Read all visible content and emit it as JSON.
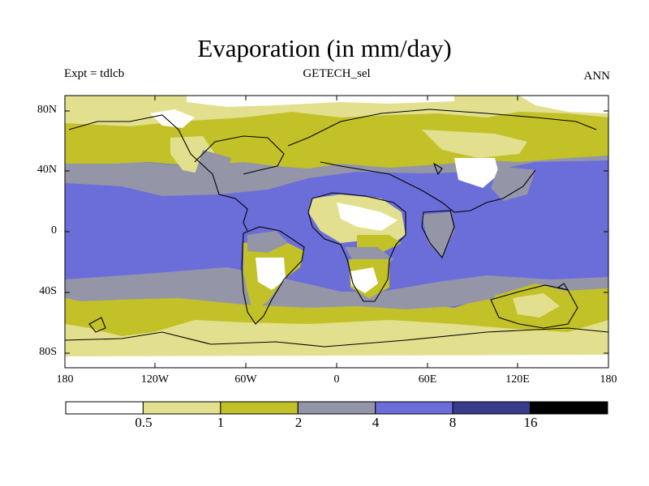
{
  "title": "Evaporation (in mm/day)",
  "experiment": "Expt = tdlcb",
  "source": "GETECH_sel",
  "season": "ANN",
  "lat_ticks": [
    "80N",
    "40N",
    "0",
    "40S",
    "80S"
  ],
  "lon_ticks": [
    "180",
    "120W",
    "60W",
    "0",
    "60E",
    "120E",
    "180"
  ],
  "colorbar": {
    "levels": [
      "0.5",
      "1",
      "2",
      "4",
      "8",
      "16"
    ],
    "colors": [
      "#ffffff",
      "#e2e08e",
      "#c3c128",
      "#9496a8",
      "#6b6ed8",
      "#383a8c",
      "#000000"
    ]
  },
  "palette": {
    "white": "#ffffff",
    "pale": "#e2e08e",
    "olive": "#c3c128",
    "grey": "#9496a8",
    "blue": "#6b6ed8"
  }
}
